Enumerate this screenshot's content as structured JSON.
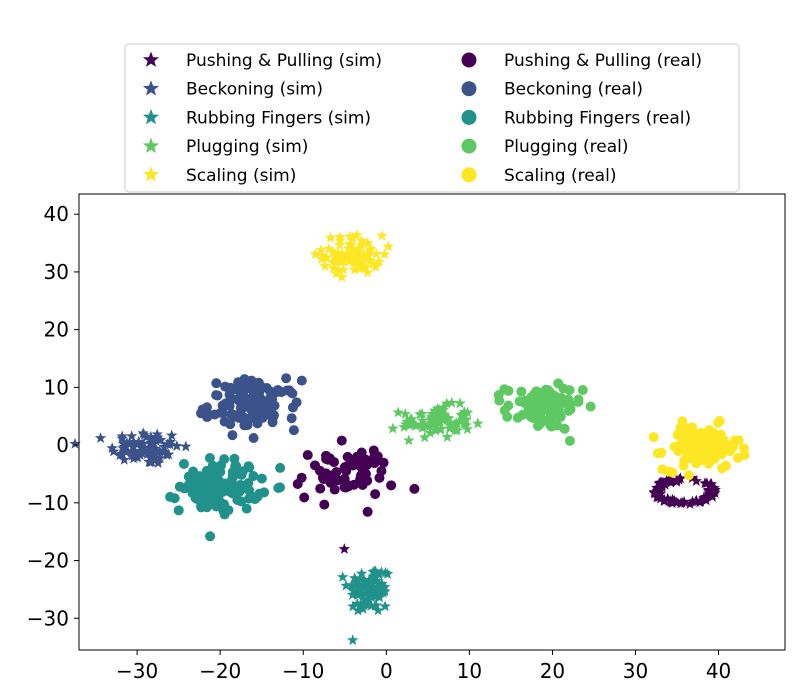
{
  "chart_data": {
    "type": "scatter",
    "title": "",
    "xlabel": "",
    "ylabel": "",
    "xlim": [
      -37,
      48
    ],
    "ylim": [
      -35.5,
      43.5
    ],
    "xticks": [
      -30,
      -20,
      -10,
      0,
      10,
      20,
      30,
      40
    ],
    "yticks": [
      -30,
      -20,
      -10,
      0,
      10,
      20,
      30,
      40
    ],
    "xtick_labels": [
      "−30",
      "−20",
      "−10",
      "0",
      "10",
      "20",
      "30",
      "40"
    ],
    "ytick_labels": [
      "−30",
      "−20",
      "−10",
      "0",
      "10",
      "20",
      "30",
      "40"
    ],
    "grid": false,
    "legend_position": "top, above plot, two columns",
    "series": [
      {
        "name": "Pushing & Pulling (sim)",
        "marker": "star",
        "color": "#440154",
        "clusters": [
          {
            "center": [
              36,
              -8
            ],
            "spread": [
              3.5,
              2.2
            ],
            "n": 70,
            "shape": "ring"
          },
          {
            "center": [
              -5,
              -18
            ],
            "spread": [
              0.1,
              0.1
            ],
            "n": 1
          }
        ]
      },
      {
        "name": "Beckoning (sim)",
        "marker": "star",
        "color": "#3b528b",
        "clusters": [
          {
            "center": [
              -29,
              -0.5
            ],
            "spread": [
              3.5,
              2.5
            ],
            "n": 80
          }
        ]
      },
      {
        "name": "Rubbing Fingers (sim)",
        "marker": "star",
        "color": "#21918c",
        "clusters": [
          {
            "center": [
              -2,
              -25
            ],
            "spread": [
              2.2,
              3.5
            ],
            "n": 80
          }
        ]
      },
      {
        "name": "Plugging (sim)",
        "marker": "star",
        "color": "#5ec962",
        "clusters": [
          {
            "center": [
              6,
              4
            ],
            "spread": [
              3.5,
              2.3
            ],
            "n": 80
          }
        ]
      },
      {
        "name": "Scaling (sim)",
        "marker": "star",
        "color": "#fde725",
        "clusters": [
          {
            "center": [
              -4,
              33
            ],
            "spread": [
              3,
              2.8
            ],
            "n": 80
          }
        ]
      },
      {
        "name": "Pushing & Pulling (real)",
        "marker": "circle",
        "color": "#440154",
        "clusters": [
          {
            "center": [
              -5,
              -5
            ],
            "spread": [
              5,
              3.8
            ],
            "n": 65
          }
        ]
      },
      {
        "name": "Beckoning (real)",
        "marker": "circle",
        "color": "#3b528b",
        "clusters": [
          {
            "center": [
              -16,
              7
            ],
            "spread": [
              4.5,
              3.5
            ],
            "n": 110
          }
        ]
      },
      {
        "name": "Rubbing Fingers (real)",
        "marker": "circle",
        "color": "#21918c",
        "clusters": [
          {
            "center": [
              -20,
              -7
            ],
            "spread": [
              4,
              3.8
            ],
            "n": 110
          }
        ]
      },
      {
        "name": "Plugging (real)",
        "marker": "circle",
        "color": "#5ec962",
        "clusters": [
          {
            "center": [
              19,
              6.5
            ],
            "spread": [
              3.8,
              3.2
            ],
            "n": 90
          }
        ]
      },
      {
        "name": "Scaling (real)",
        "marker": "circle",
        "color": "#fde725",
        "clusters": [
          {
            "center": [
              38,
              -0.5
            ],
            "spread": [
              3.8,
              3.2
            ],
            "n": 100
          }
        ]
      }
    ]
  }
}
